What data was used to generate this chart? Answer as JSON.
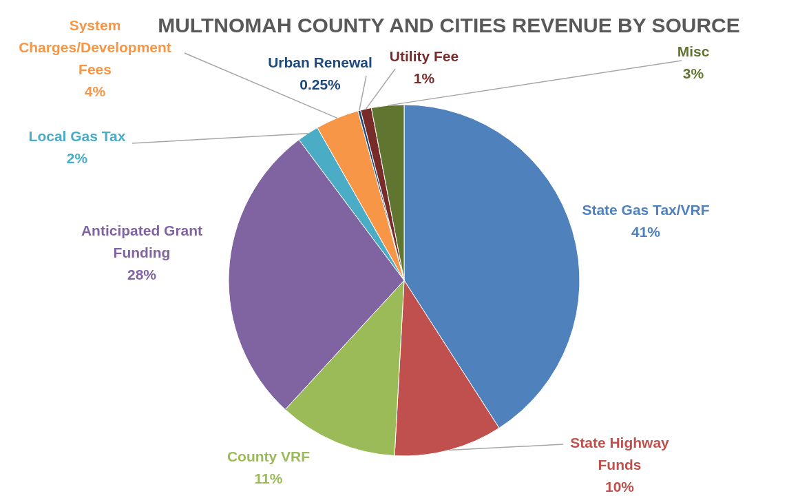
{
  "chart_data": {
    "type": "pie",
    "title": "MULTNOMAH COUNTY AND CITIES REVENUE BY SOURCE",
    "categories": [
      "State Gas Tax/VRF",
      "State Highway Funds",
      "County VRF",
      "Anticipated Grant Funding",
      "Local Gas Tax",
      "System Charges/Development Fees",
      "Urban Renewal",
      "Utility Fee",
      "Misc"
    ],
    "values": [
      41,
      10,
      11,
      28,
      2,
      4,
      0.25,
      1,
      3
    ],
    "value_labels": [
      "41%",
      "10%",
      "11%",
      "28%",
      "2%",
      "4%",
      "0.25%",
      "1%",
      "3%"
    ],
    "colors": [
      "#4f81bd",
      "#c0504d",
      "#9bbb59",
      "#8064a2",
      "#4bacc6",
      "#f79646",
      "#1f497d",
      "#772c2a",
      "#5f7530"
    ]
  }
}
